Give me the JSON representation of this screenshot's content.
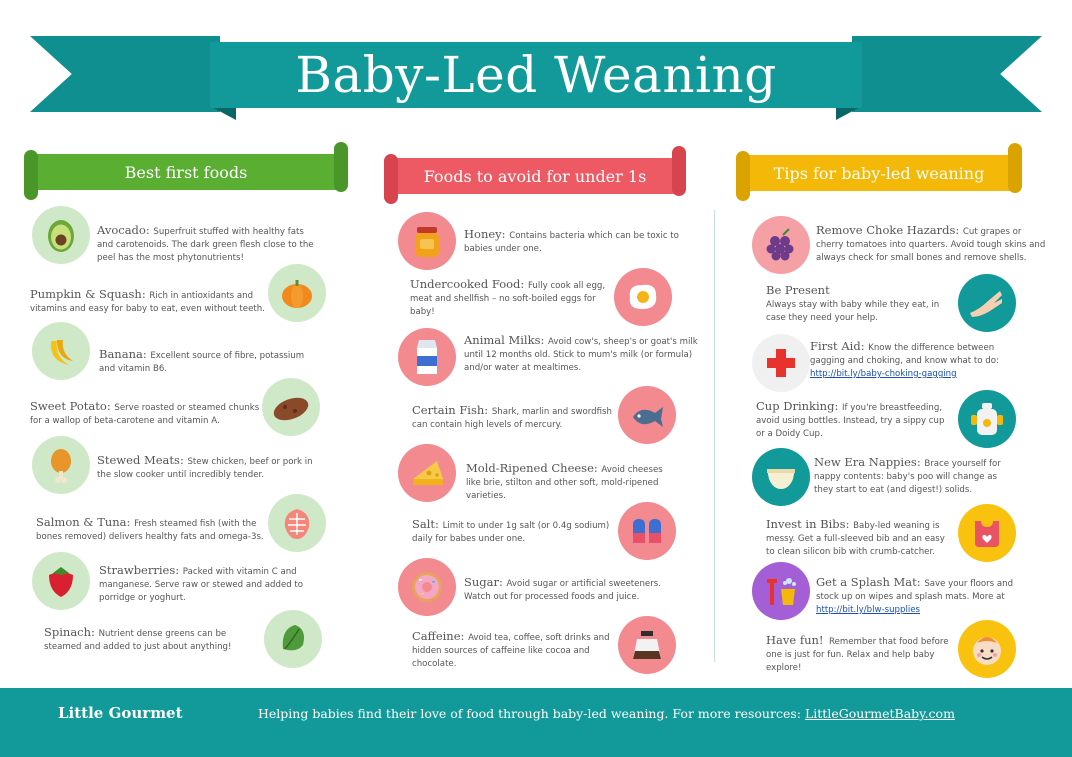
{
  "title": "Baby-Led Weaning",
  "columns": {
    "best": {
      "heading": "Best first foods",
      "items": [
        {
          "name": "Avocado",
          "text": "Superfruit stuffed with healthy fats and carotenoids. The dark green flesh close to the peel has the most phytonutrients!",
          "icon": "avocado-icon"
        },
        {
          "name": "Pumpkin & Squash",
          "text": "Rich in antioxidants and vitamins and easy for baby to eat, even without teeth.",
          "icon": "pumpkin-icon"
        },
        {
          "name": "Banana",
          "text": "Excellent source of fibre, potassium and vitamin B6.",
          "icon": "banana-icon"
        },
        {
          "name": "Sweet Potato",
          "text": "Serve roasted or steamed chunks for a wallop of beta-carotene and vitamin A.",
          "icon": "sweet-potato-icon"
        },
        {
          "name": "Stewed Meats",
          "text": "Stew chicken, beef or pork in the slow cooker until incredibly tender.",
          "icon": "drumstick-icon"
        },
        {
          "name": "Salmon & Tuna",
          "text": "Fresh steamed fish (with the bones removed) delivers healthy fats and omega-3s.",
          "icon": "salmon-icon"
        },
        {
          "name": "Strawberries",
          "text": "Packed with vitamin C and manganese. Serve raw or stewed and added to porridge or yoghurt.",
          "icon": "strawberry-icon"
        },
        {
          "name": "Spinach",
          "text": "Nutrient dense greens can be steamed and added to just about anything!",
          "icon": "spinach-icon"
        }
      ]
    },
    "avoid": {
      "heading": "Foods to avoid for under 1s",
      "items": [
        {
          "name": "Honey",
          "text": "Contains bacteria which can be toxic to babies under one.",
          "icon": "honey-jar-icon"
        },
        {
          "name": "Undercooked Food",
          "text": "Fully cook all egg, meat and shellfish – no soft-boiled eggs for baby!",
          "icon": "fried-egg-icon"
        },
        {
          "name": "Animal Milks",
          "text": "Avoid cow's, sheep's or goat's milk until 12 months old. Stick to mum's milk (or formula) and/or water at mealtimes.",
          "icon": "milk-carton-icon"
        },
        {
          "name": "Certain Fish",
          "text": "Shark, marlin and swordfish can contain high levels of mercury.",
          "icon": "fish-icon"
        },
        {
          "name": "Mold-Ripened Cheese",
          "text": "Avoid cheeses like brie, stilton and other soft, mold-ripened varieties.",
          "icon": "cheese-icon"
        },
        {
          "name": "Salt",
          "text": "Limit to under 1g salt (or 0.4g sodium) daily for babes under one.",
          "icon": "salt-shakers-icon"
        },
        {
          "name": "Sugar",
          "text": "Avoid sugar or artificial sweeteners. Watch out for processed foods and juice.",
          "icon": "donut-icon"
        },
        {
          "name": "Caffeine",
          "text": "Avoid tea, coffee, soft drinks and hidden sources of caffeine like cocoa and chocolate.",
          "icon": "coffee-pot-icon"
        }
      ]
    },
    "tips": {
      "heading": "Tips for baby-led weaning",
      "items": [
        {
          "name": "Remove Choke Hazards",
          "text": "Cut grapes or cherry tomatoes into quarters. Avoid tough skins and always check for small bones and remove shells.",
          "icon": "grapes-icon"
        },
        {
          "name": "Be Present",
          "text": "Always stay with baby while they eat, in case they need your help.",
          "icon": "hands-icon"
        },
        {
          "name": "First Aid",
          "text": "Know the difference between gagging and choking, and know what to do:",
          "link": "http://bit.ly/baby-choking-gagging",
          "icon": "first-aid-cross-icon"
        },
        {
          "name": "Cup Drinking",
          "text": "If you're breastfeeding, avoid using bottles. Instead, try a sippy cup or a Doidy Cup.",
          "icon": "sippy-cup-icon"
        },
        {
          "name": "New Era Nappies",
          "text": "Brace yourself for nappy contents: baby's poo will change as they start to eat (and digest!) solids.",
          "icon": "nappy-icon"
        },
        {
          "name": "Invest in Bibs",
          "text": "Baby-led weaning is messy. Get a full-sleeved bib and an easy to clean silicon bib with crumb-catcher.",
          "icon": "bib-icon"
        },
        {
          "name": "Get a Splash Mat",
          "text": "Save your floors and stock up on wipes and splash mats. More at",
          "link": "http://bit.ly/blw-supplies",
          "icon": "cleaning-icon"
        },
        {
          "name": "Have fun!",
          "text": "Remember that food before one is just for fun. Relax and help baby explore!",
          "icon": "baby-face-icon"
        }
      ]
    }
  },
  "footer": {
    "brand": "Little Gourmet",
    "tagline": "Helping babies find their love of food through baby-led weaning. For more resources:",
    "link": "LittleGourmetBaby.com"
  }
}
